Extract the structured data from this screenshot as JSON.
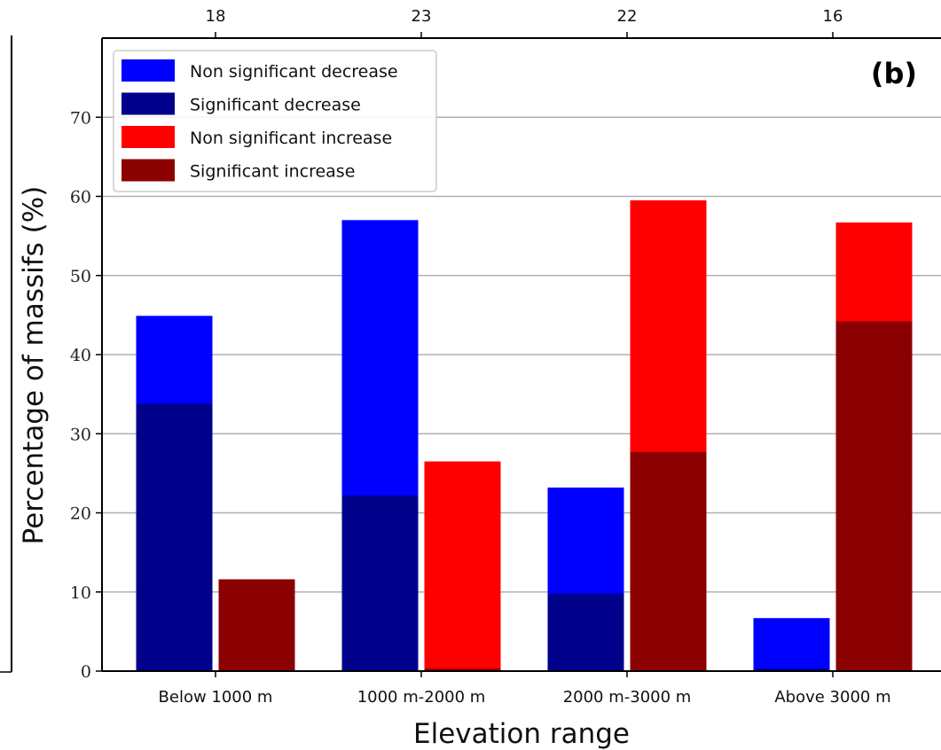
{
  "chart_data": {
    "type": "bar",
    "panel_label": "(b)",
    "title": "",
    "xlabel": "Elevation range",
    "ylabel": "Percentage of massifs (%)",
    "ylim": [
      0,
      80
    ],
    "yticks": [
      0,
      10,
      20,
      30,
      40,
      50,
      60,
      70
    ],
    "grid": "horizontal",
    "legend_position": "top-left",
    "categories": [
      "Below 1000 m",
      "1000 m-2000 m",
      "2000 m-3000 m",
      "Above 3000 m"
    ],
    "top_axis_labels": [
      "18",
      "23",
      "22",
      "16"
    ],
    "series": [
      {
        "name": "Non significant decrease",
        "group": "decrease",
        "color": "#0000ff",
        "values": [
          44.9,
          57.0,
          23.2,
          6.7
        ]
      },
      {
        "name": "Significant decrease",
        "group": "decrease",
        "color": "#00008b",
        "values": [
          33.8,
          22.2,
          9.8,
          0.3
        ]
      },
      {
        "name": "Non significant increase",
        "group": "increase",
        "color": "#ff0000",
        "values": [
          11.6,
          26.5,
          59.5,
          56.7
        ]
      },
      {
        "name": "Significant increase",
        "group": "increase",
        "color": "#8b0000",
        "values": [
          11.6,
          0.3,
          27.7,
          44.2
        ]
      }
    ]
  }
}
